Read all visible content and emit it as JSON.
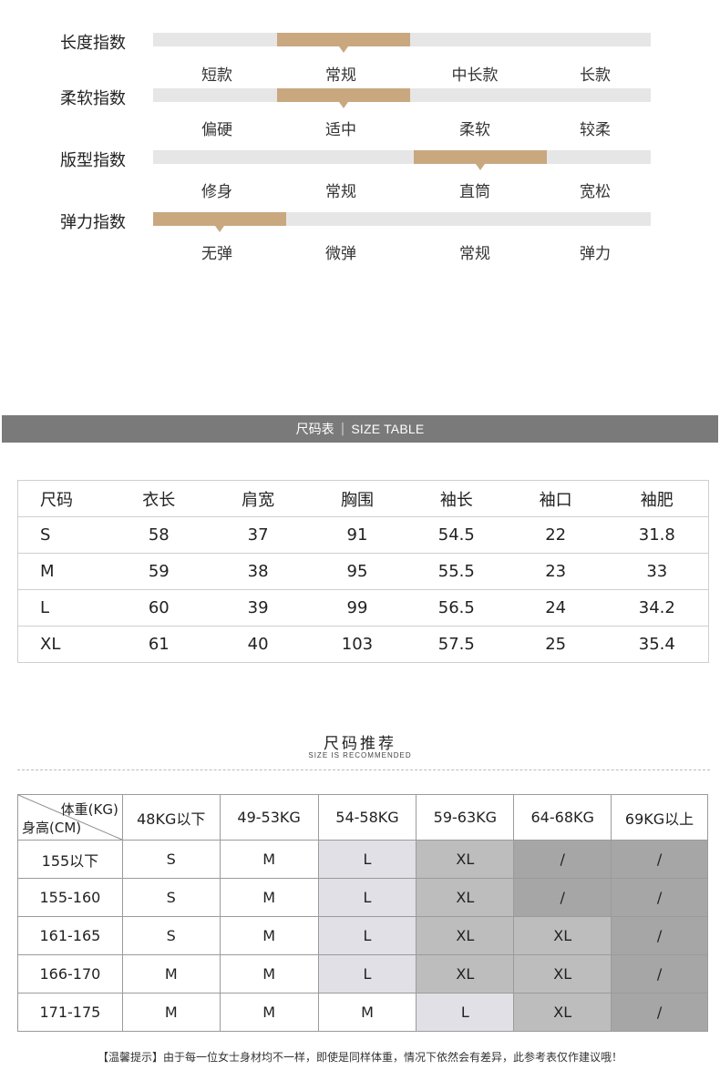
{
  "indices": [
    {
      "title": "长度指数",
      "options": [
        "短款",
        "常规",
        "中长款",
        "长款"
      ],
      "selected": 1
    },
    {
      "title": "柔软指数",
      "options": [
        "偏硬",
        "适中",
        "柔软",
        "较柔"
      ],
      "selected": 1
    },
    {
      "title": "版型指数",
      "options": [
        "修身",
        "常规",
        "直筒",
        "宽松"
      ],
      "selected": 2
    },
    {
      "title": "弹力指数",
      "options": [
        "无弹",
        "微弹",
        "常规",
        "弹力"
      ],
      "selected": 0
    }
  ],
  "size_banner": {
    "cn": "尺码表",
    "en": "SIZE TABLE"
  },
  "size_table": {
    "headers": [
      "尺码",
      "衣长",
      "肩宽",
      "胸围",
      "袖长",
      "袖口",
      "袖肥"
    ],
    "rows": [
      [
        "S",
        "58",
        "37",
        "91",
        "54.5",
        "22",
        "31.8"
      ],
      [
        "M",
        "59",
        "38",
        "95",
        "55.5",
        "23",
        "33"
      ],
      [
        "L",
        "60",
        "39",
        "99",
        "56.5",
        "24",
        "34.2"
      ],
      [
        "XL",
        "61",
        "40",
        "103",
        "57.5",
        "25",
        "35.4"
      ]
    ]
  },
  "recommend": {
    "title": "尺码推荐",
    "subtitle": "SIZE IS RECOMMENDED",
    "corner_top": "体重(KG)",
    "corner_bottom": "身高(CM)",
    "weights": [
      "48KG以下",
      "49-53KG",
      "54-58KG",
      "59-63KG",
      "64-68KG",
      "69KG以上"
    ],
    "rows": [
      {
        "height": "155以下",
        "cells": [
          "S",
          "M",
          "L",
          "XL",
          "/",
          "/"
        ],
        "shades": [
          0,
          0,
          1,
          2,
          3,
          3
        ]
      },
      {
        "height": "155-160",
        "cells": [
          "S",
          "M",
          "L",
          "XL",
          "/",
          "/"
        ],
        "shades": [
          0,
          0,
          1,
          2,
          3,
          3
        ]
      },
      {
        "height": "161-165",
        "cells": [
          "S",
          "M",
          "L",
          "XL",
          "XL",
          "/"
        ],
        "shades": [
          0,
          0,
          1,
          2,
          2,
          3
        ]
      },
      {
        "height": "166-170",
        "cells": [
          "M",
          "M",
          "L",
          "XL",
          "XL",
          "/"
        ],
        "shades": [
          0,
          0,
          1,
          2,
          2,
          3
        ]
      },
      {
        "height": "171-175",
        "cells": [
          "M",
          "M",
          "M",
          "L",
          "XL",
          "/"
        ],
        "shades": [
          0,
          0,
          0,
          1,
          2,
          3
        ]
      }
    ],
    "colors": {
      "accent": "#c9a880",
      "track": "#e6e6e6",
      "shade_light": "#e0e0e6",
      "shade_mid": "#bdbdbd",
      "shade_dark": "#a6a6a6"
    }
  },
  "notice": "【温馨提示】由于每一位女士身材均不一样，即使是同样体重，情况下依然会有差异，此参考表仅作建议哦！"
}
